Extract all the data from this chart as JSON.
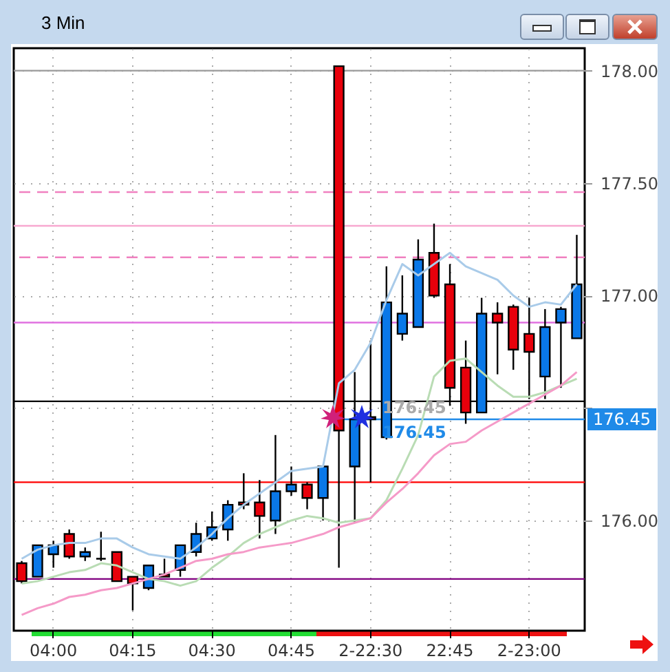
{
  "chart_data": {
    "type": "candlestick",
    "title": "3 Min",
    "categories": [
      null,
      null,
      "04:00",
      null,
      null,
      null,
      null,
      "04:15",
      null,
      null,
      null,
      null,
      "04:30",
      null,
      null,
      null,
      null,
      "04:45",
      null,
      null,
      null,
      null,
      "2-22:30",
      null,
      null,
      null,
      null,
      "22:45",
      null,
      null,
      null,
      null,
      "2-23:00",
      null,
      null,
      null
    ],
    "ohlc": [
      [
        175.81,
        175.82,
        175.72,
        175.73
      ],
      [
        175.75,
        175.89,
        175.75,
        175.89
      ],
      [
        175.85,
        175.91,
        175.79,
        175.89
      ],
      [
        175.94,
        175.96,
        175.83,
        175.84
      ],
      [
        175.84,
        175.88,
        175.82,
        175.86
      ],
      [
        175.83,
        175.95,
        175.82,
        175.83
      ],
      [
        175.86,
        175.86,
        175.73,
        175.73
      ],
      [
        175.75,
        175.75,
        175.6,
        175.72
      ],
      [
        175.7,
        175.8,
        175.69,
        175.8
      ],
      [
        175.76,
        175.83,
        175.75,
        175.75
      ],
      [
        175.78,
        175.89,
        175.75,
        175.89
      ],
      [
        175.86,
        175.99,
        175.84,
        175.94
      ],
      [
        175.92,
        176.04,
        175.91,
        175.97
      ],
      [
        175.96,
        176.09,
        175.91,
        176.07
      ],
      [
        176.08,
        176.21,
        176.05,
        176.07
      ],
      [
        176.08,
        176.18,
        175.92,
        176.02
      ],
      [
        176.0,
        176.38,
        175.94,
        176.13
      ],
      [
        176.13,
        176.24,
        176.11,
        176.16
      ],
      [
        176.16,
        176.17,
        176.05,
        176.1
      ],
      [
        176.1,
        176.24,
        176.0,
        176.24
      ],
      [
        178.02,
        178.02,
        175.79,
        176.4
      ],
      [
        176.24,
        176.66,
        175.99,
        176.45
      ],
      [
        176.46,
        176.8,
        176.17,
        176.45
      ],
      [
        176.37,
        177.13,
        176.36,
        176.97
      ],
      [
        176.83,
        177.09,
        176.8,
        176.92
      ],
      [
        176.86,
        177.25,
        176.86,
        177.16
      ],
      [
        177.19,
        177.32,
        176.99,
        177.0
      ],
      [
        177.05,
        177.14,
        176.51,
        176.59
      ],
      [
        176.68,
        176.8,
        176.43,
        176.48
      ],
      [
        176.48,
        176.99,
        176.48,
        176.92
      ],
      [
        176.92,
        176.97,
        176.65,
        176.88
      ],
      [
        176.95,
        176.96,
        176.67,
        176.76
      ],
      [
        176.83,
        176.99,
        176.54,
        176.75
      ],
      [
        176.64,
        176.94,
        176.54,
        176.86
      ],
      [
        176.88,
        176.95,
        176.59,
        176.94
      ],
      [
        176.81,
        177.27,
        176.81,
        177.05
      ]
    ],
    "colors": [
      "#e8000b",
      "#0a78e8",
      "#0a78e8",
      "#e8000b",
      "#0a78e8",
      "#000000",
      "#e8000b",
      "#e8000b",
      "#0a78e8",
      "#e8000b",
      "#0a78e8",
      "#0a78e8",
      "#0a78e8",
      "#0a78e8",
      "#e8000b",
      "#e8000b",
      "#0a78e8",
      "#0a78e8",
      "#e8000b",
      "#0a78e8",
      "#e8000b",
      "#0a78e8",
      "#e8000b",
      "#0a78e8",
      "#0a78e8",
      "#0a78e8",
      "#e8000b",
      "#e8000b",
      "#e8000b",
      "#0a78e8",
      "#e8000b",
      "#e8000b",
      "#e8000b",
      "#0a78e8",
      "#0a78e8",
      "#0a78e8"
    ],
    "series": [
      {
        "type": "line",
        "color": "#a9cbe9",
        "values": [
          175.83,
          175.87,
          175.89,
          175.9,
          175.9,
          175.92,
          175.92,
          175.88,
          175.85,
          175.84,
          175.83,
          175.88,
          175.94,
          176.01,
          176.07,
          176.12,
          176.17,
          176.22,
          176.23,
          176.24,
          176.61,
          176.67,
          176.79,
          176.98,
          177.14,
          177.09,
          177.14,
          177.19,
          177.13,
          177.1,
          177.07,
          177.0,
          176.95,
          176.97,
          176.96,
          177.05
        ]
      },
      {
        "type": "line",
        "color": "#b9dcb4",
        "values": [
          175.72,
          175.73,
          175.75,
          175.77,
          175.78,
          175.81,
          175.8,
          175.77,
          175.74,
          175.73,
          175.71,
          175.73,
          175.79,
          175.84,
          175.9,
          175.94,
          175.97,
          176.0,
          176.02,
          176.01,
          175.99,
          176.0,
          176.01,
          176.09,
          176.23,
          176.38,
          176.64,
          176.71,
          176.72,
          176.66,
          176.6,
          176.55,
          176.55,
          176.57,
          176.6,
          176.63
        ]
      },
      {
        "type": "line",
        "color": "#f59ac8",
        "values": [
          175.58,
          175.61,
          175.63,
          175.66,
          175.67,
          175.69,
          175.7,
          175.72,
          175.74,
          175.76,
          175.79,
          175.82,
          175.83,
          175.85,
          175.86,
          175.88,
          175.89,
          175.9,
          175.92,
          175.94,
          175.97,
          175.99,
          176.01,
          176.08,
          176.14,
          176.21,
          176.29,
          176.34,
          176.35,
          176.4,
          176.44,
          176.48,
          176.52,
          176.56,
          176.6,
          176.66
        ]
      }
    ],
    "ylim": [
      175.51,
      178.1
    ],
    "yticks": [
      {
        "value": 176,
        "label": "176.00"
      },
      {
        "value": 176.5,
        "label": null
      },
      {
        "value": 177,
        "label": "177.00"
      },
      {
        "value": 177.5,
        "label": "177.50"
      },
      {
        "value": 178,
        "label": "178.00"
      }
    ],
    "grid": true,
    "ref_lines": [
      {
        "axis": "y",
        "value": 178.0,
        "color": "#999999",
        "line_style": "solid"
      },
      {
        "axis": "y",
        "value": 177.46,
        "color": "#f080c0",
        "line_style": "dashed"
      },
      {
        "axis": "y",
        "value": 177.31,
        "color": "#f8a8d0",
        "line_style": "solid"
      },
      {
        "axis": "y",
        "value": 177.17,
        "color": "#f080c0",
        "line_style": "dashed"
      },
      {
        "axis": "y",
        "value": 176.88,
        "color": "#e070e0",
        "line_style": "solid"
      },
      {
        "axis": "y",
        "value": 176.53,
        "color": "#000000",
        "line_style": "solid"
      },
      {
        "axis": "y",
        "value": 176.45,
        "color": "#1f8ae8",
        "line_style": "solid",
        "label": "176.45"
      },
      {
        "axis": "y",
        "value": 176.17,
        "color": "#ff0000",
        "line_style": "solid"
      },
      {
        "axis": "y",
        "value": 175.74,
        "color": "#800080",
        "line_style": "solid"
      }
    ],
    "annotations": [
      "176.45",
      "176.45"
    ]
  }
}
